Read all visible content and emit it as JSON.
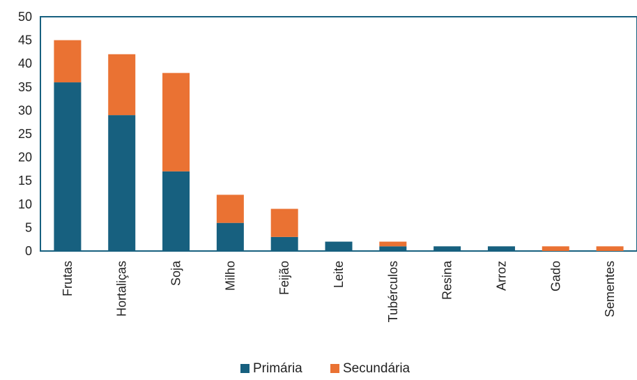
{
  "chart_data": {
    "type": "bar",
    "stacked": true,
    "title": "",
    "xlabel": "",
    "ylabel": "",
    "categories": [
      "Frutas",
      "Hortaliças",
      "Soja",
      "Milho",
      "Feijão",
      "Leite",
      "Tubérculos",
      "Resina",
      "Arroz",
      "Gado",
      "Sementes"
    ],
    "series": [
      {
        "name": "Primária",
        "color": "#17607f",
        "values": [
          36,
          29,
          17,
          6,
          3,
          2,
          1,
          1,
          1,
          0,
          0
        ]
      },
      {
        "name": "Secundária",
        "color": "#ea7233",
        "values": [
          9,
          13,
          21,
          6,
          6,
          0,
          1,
          0,
          0,
          1,
          1
        ]
      }
    ],
    "ylim": [
      0,
      50
    ],
    "yticks": [
      0,
      5,
      10,
      15,
      20,
      25,
      30,
      35,
      40,
      45,
      50
    ],
    "grid": false,
    "legend_position": "bottom"
  }
}
